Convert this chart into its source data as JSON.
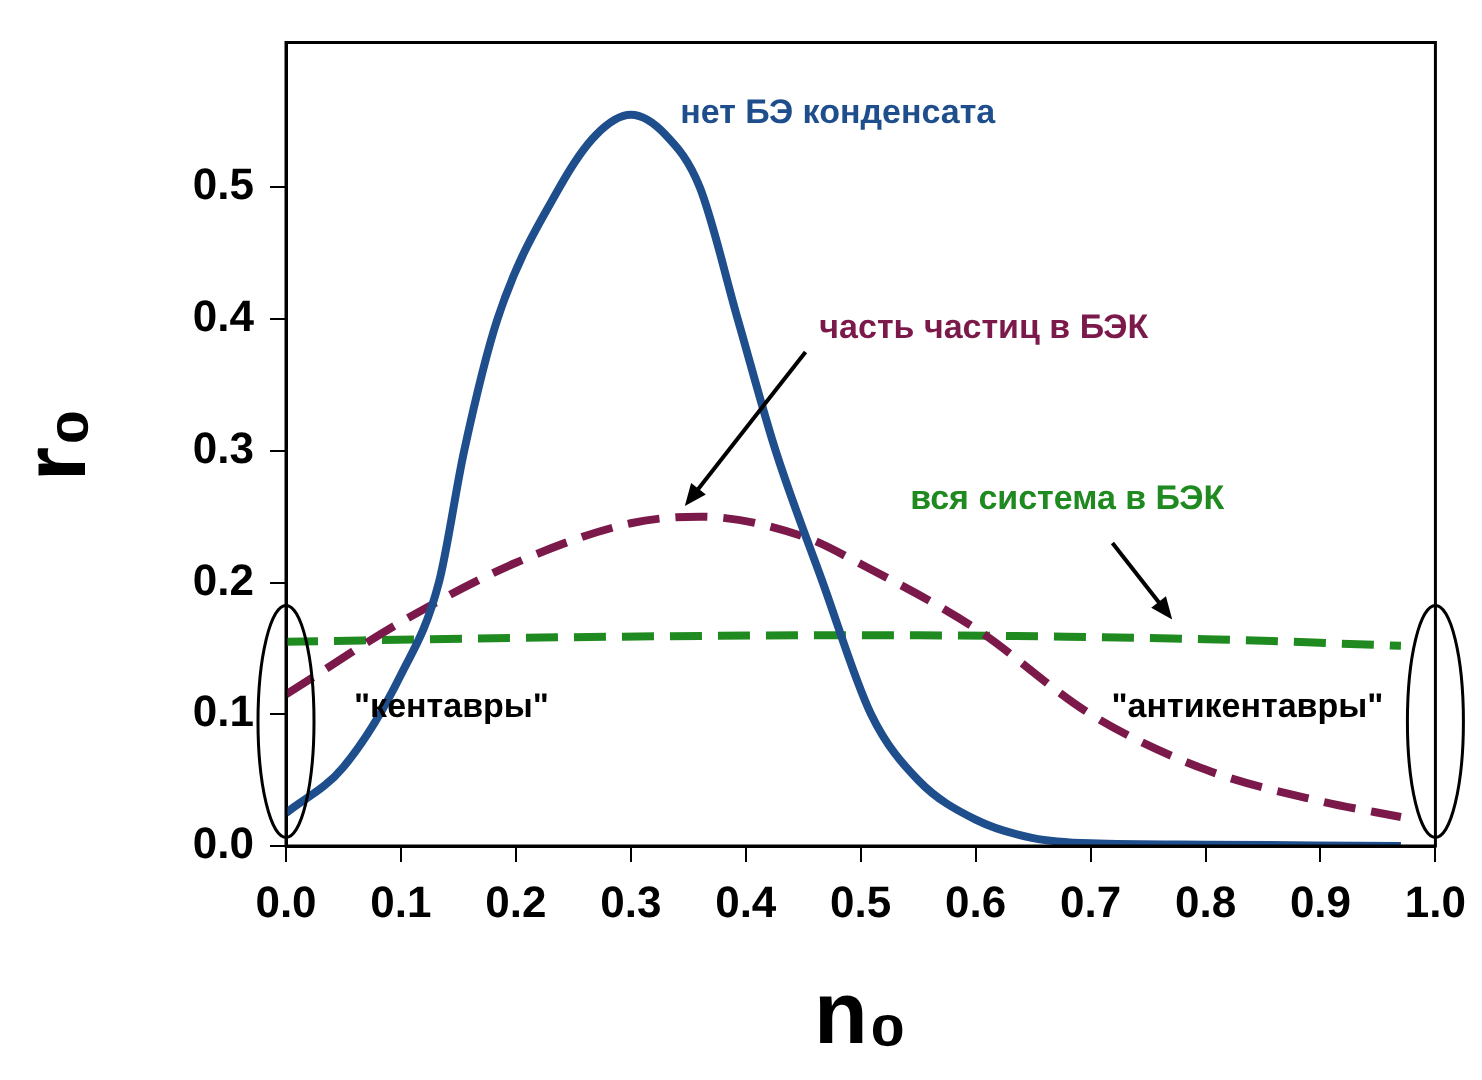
{
  "chart_data": {
    "type": "line",
    "xlabel": "n₀",
    "ylabel": "r₀",
    "xlim": [
      0,
      1
    ],
    "xticks": [
      {
        "value": 0,
        "label": "0.0"
      },
      0.1,
      0.2,
      0.3,
      0.4,
      0.5,
      0.6,
      0.7,
      0.8,
      0.9,
      {
        "value": 1,
        "label": "1.0"
      }
    ],
    "ylim": [
      0,
      0.61
    ],
    "yticks": [
      {
        "value": 0,
        "label": "0.0"
      },
      0.1,
      0.2,
      0.3,
      0.4,
      0.5
    ],
    "grid": false,
    "legend": false,
    "marker": "none",
    "series": [
      {
        "name": "нет БЭ конденсата",
        "color": "#1f4e8c",
        "line_style": "solid",
        "x": [
          0,
          0.05,
          0.1,
          0.133,
          0.155,
          0.184,
          0.238,
          0.27,
          0.3,
          0.33,
          0.36,
          0.393,
          0.426,
          0.467,
          0.509,
          0.55,
          0.6,
          0.65,
          0.7,
          0.8,
          0.97
        ],
        "values": [
          0.025,
          0.06,
          0.13,
          0.2,
          0.3,
          0.4,
          0.5,
          0.54,
          0.555,
          0.54,
          0.5,
          0.4,
          0.3,
          0.2,
          0.1,
          0.05,
          0.02,
          0.006,
          0.002,
          0.001,
          0
        ]
      },
      {
        "name": "часть частиц в БЭК",
        "color": "#7b1a4a",
        "line_style": "dashed",
        "x": [
          0,
          0.1,
          0.2,
          0.3,
          0.36,
          0.45,
          0.5,
          0.6,
          0.7,
          0.8,
          0.9,
          0.97
        ],
        "values": [
          0.115,
          0.17,
          0.215,
          0.245,
          0.25,
          0.235,
          0.214,
          0.165,
          0.1,
          0.058,
          0.034,
          0.022
        ]
      },
      {
        "name": "вся система в БЭК",
        "color": "#1f8a1f",
        "line_style": "dashed",
        "x": [
          0,
          0.2,
          0.5,
          0.8,
          0.97
        ],
        "values": [
          0.155,
          0.158,
          0.16,
          0.157,
          0.152
        ]
      }
    ],
    "annotations": [
      "\"кентавры\"",
      "\"антикентавры\""
    ]
  }
}
